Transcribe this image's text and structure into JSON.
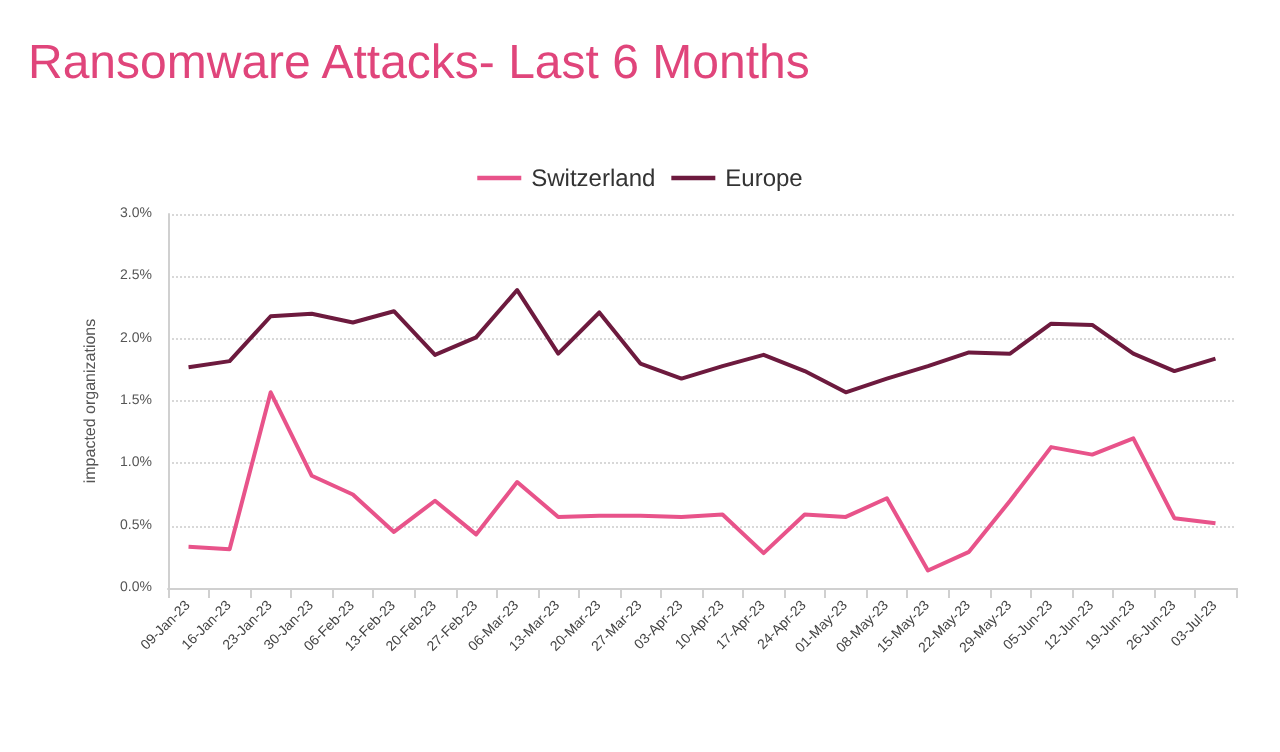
{
  "chart_data": {
    "type": "line",
    "title": "Ransomware Attacks- Last 6 Months",
    "ylabel": "impacted organizations",
    "categories": [
      "09-Jan-23",
      "16-Jan-23",
      "23-Jan-23",
      "30-Jan-23",
      "06-Feb-23",
      "13-Feb-23",
      "20-Feb-23",
      "27-Feb-23",
      "06-Mar-23",
      "13-Mar-23",
      "20-Mar-23",
      "27-Mar-23",
      "03-Apr-23",
      "10-Apr-23",
      "17-Apr-23",
      "24-Apr-23",
      "01-May-23",
      "08-May-23",
      "15-May-23",
      "22-May-23",
      "29-May-23",
      "05-Jun-23",
      "12-Jun-23",
      "19-Jun-23",
      "26-Jun-23",
      "03-Jul-23"
    ],
    "series": [
      {
        "name": "Switzerland",
        "color": "#e8538a",
        "values": [
          0.33,
          0.31,
          1.57,
          0.9,
          0.75,
          0.45,
          0.7,
          0.43,
          0.85,
          0.57,
          0.58,
          0.58,
          0.57,
          0.59,
          0.28,
          0.59,
          0.57,
          0.72,
          0.14,
          0.29,
          0.7,
          1.13,
          1.07,
          1.2,
          0.56,
          0.52
        ]
      },
      {
        "name": "Europe",
        "color": "#6d1a3e",
        "values": [
          1.77,
          1.82,
          2.18,
          2.2,
          2.13,
          2.22,
          1.87,
          2.01,
          2.39,
          1.88,
          2.21,
          1.8,
          1.68,
          1.78,
          1.87,
          1.74,
          1.57,
          1.68,
          1.78,
          1.89,
          1.88,
          2.12,
          2.11,
          1.88,
          1.74,
          1.84
        ]
      }
    ],
    "ylim": [
      0,
      3
    ],
    "yticks": [
      {
        "value": 0,
        "label": "0.0%"
      },
      {
        "value": 0.5,
        "label": "0.5%"
      },
      {
        "value": 1,
        "label": "1.0%"
      },
      {
        "value": 1.5,
        "label": "1.5%"
      },
      {
        "value": 2,
        "label": "2.0%"
      },
      {
        "value": 2.5,
        "label": "2.5%"
      },
      {
        "value": 3,
        "label": "3.0%"
      }
    ],
    "grid": "y",
    "legend": "top",
    "marker": "none",
    "line_style": "solid"
  }
}
